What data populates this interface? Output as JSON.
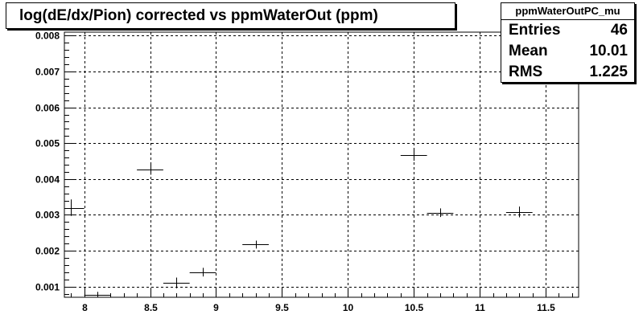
{
  "title": "log(dE/dx/Pion) corrected vs ppmWaterOut (ppm)",
  "stats": {
    "name": "ppmWaterOutPC_mu",
    "rows": [
      {
        "label": "Entries",
        "value": "46"
      },
      {
        "label": "Mean",
        "value": "10.01"
      },
      {
        "label": "RMS",
        "value": "1.225"
      }
    ]
  },
  "colors": {
    "frame": "#000000",
    "grid": "#000000",
    "marker": "#000000",
    "background": "#ffffff"
  },
  "chart_data": {
    "type": "scatter",
    "title": "log(dE/dx/Pion) corrected vs ppmWaterOut (ppm)",
    "xlabel": "",
    "ylabel": "",
    "xlim": [
      7.85,
      11.75
    ],
    "ylim": [
      0.0007,
      0.0081
    ],
    "grid": true,
    "x_ticks": [
      8,
      8.5,
      9,
      9.5,
      10,
      10.5,
      11,
      11.5
    ],
    "x_tick_labels": [
      "8",
      "8.5",
      "9",
      "9.5",
      "10",
      "10.5",
      "11",
      "11.5"
    ],
    "y_ticks": [
      0.001,
      0.002,
      0.003,
      0.004,
      0.005,
      0.006,
      0.007,
      0.008
    ],
    "y_tick_labels": [
      "0.001",
      "0.002",
      "0.003",
      "0.004",
      "0.005",
      "0.006",
      "0.007",
      "0.008"
    ],
    "points": [
      {
        "x": 7.9,
        "y": 0.0032,
        "xerr": 0.1,
        "yerr": 0.00023
      },
      {
        "x": 8.1,
        "y": 0.00077,
        "xerr": 0.1,
        "yerr": 8e-05
      },
      {
        "x": 8.5,
        "y": 0.00427,
        "xerr": 0.1,
        "yerr": 0.00015
      },
      {
        "x": 8.7,
        "y": 0.0011,
        "xerr": 0.1,
        "yerr": 0.00015
      },
      {
        "x": 8.9,
        "y": 0.0014,
        "xerr": 0.1,
        "yerr": 0.00012
      },
      {
        "x": 9.3,
        "y": 0.00217,
        "xerr": 0.1,
        "yerr": 0.00011
      },
      {
        "x": 10.5,
        "y": 0.00468,
        "xerr": 0.1,
        "yerr": 0.00017
      },
      {
        "x": 10.7,
        "y": 0.00306,
        "xerr": 0.1,
        "yerr": 0.00012
      },
      {
        "x": 11.3,
        "y": 0.00308,
        "xerr": 0.1,
        "yerr": 0.00015
      }
    ]
  }
}
